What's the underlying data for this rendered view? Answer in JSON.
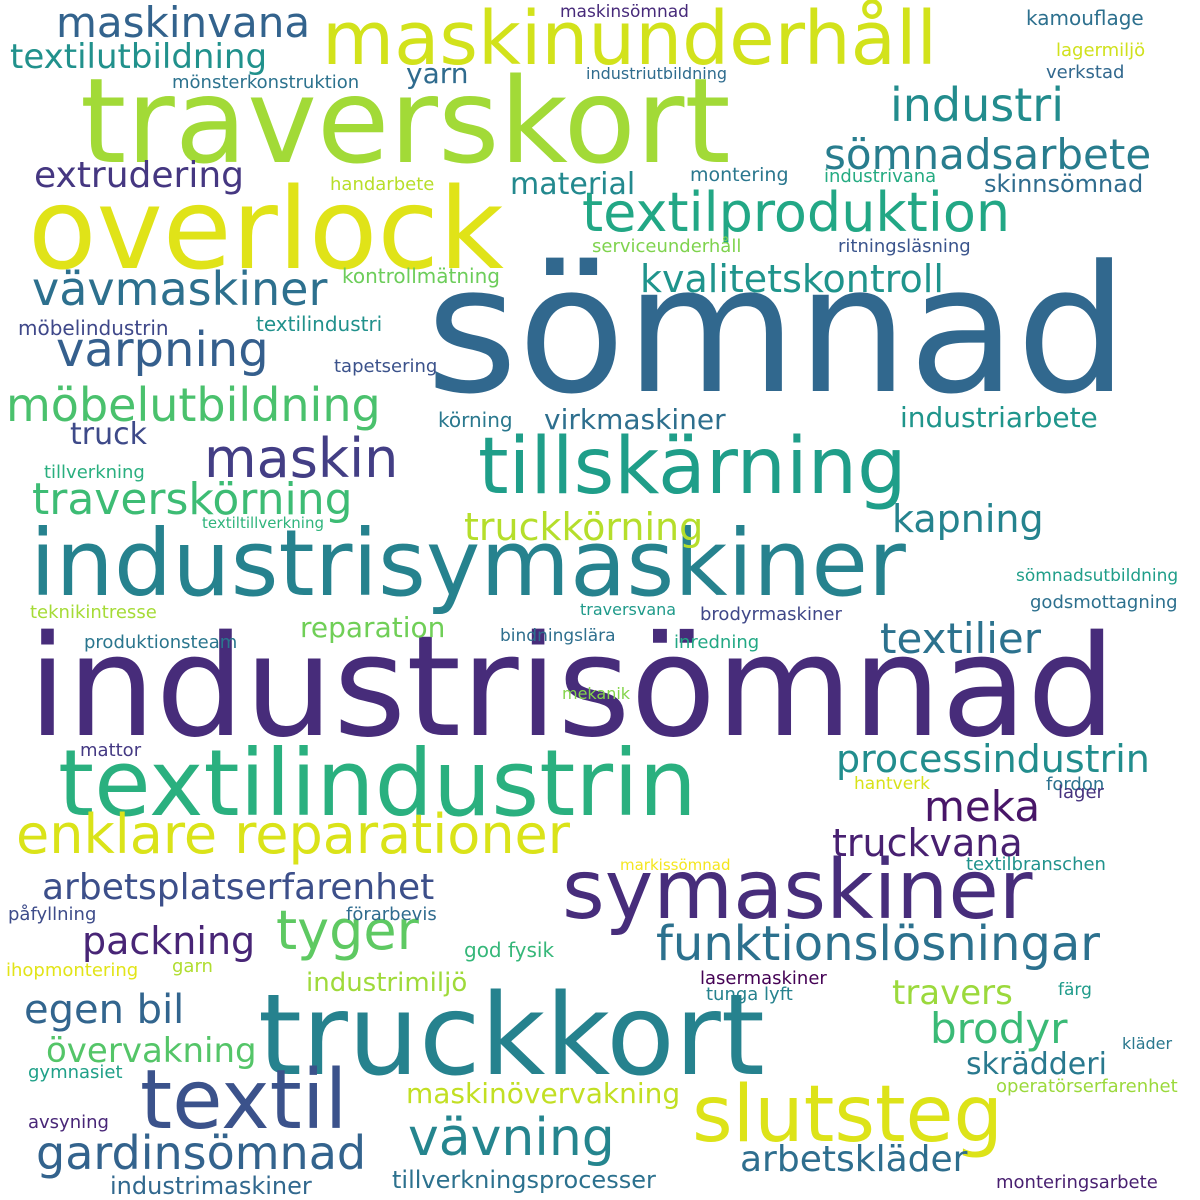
{
  "words": [
    {
      "text": "sömnad",
      "color": "#31688e"
    },
    {
      "text": "industrisömnad",
      "color": "#472c7a"
    },
    {
      "text": "traverskort",
      "color": "#a2da37"
    },
    {
      "text": "overlock",
      "color": "#e0e318"
    },
    {
      "text": "industrisymaskiner",
      "color": "#26828e"
    },
    {
      "text": "truckkort",
      "color": "#26828e"
    },
    {
      "text": "textilindustrin",
      "color": "#2ab07f"
    },
    {
      "text": "maskinunderhåll",
      "color": "#d2e21b"
    },
    {
      "text": "tillskärning",
      "color": "#1f9e89"
    },
    {
      "text": "symaskiner",
      "color": "#472d7b"
    },
    {
      "text": "textil",
      "color": "#3b528b"
    },
    {
      "text": "slutsteg",
      "color": "#dde318"
    },
    {
      "text": "enklare reparationer",
      "color": "#dae319"
    },
    {
      "text": "textilproduktion",
      "color": "#22a785"
    },
    {
      "text": "funktionslösningar",
      "color": "#2c718e"
    },
    {
      "text": "maskin",
      "color": "#433e85"
    },
    {
      "text": "tyger",
      "color": "#5ec962"
    },
    {
      "text": "vävning",
      "color": "#25858e"
    },
    {
      "text": "gardinsömnad",
      "color": "#33638d"
    },
    {
      "text": "möbelutbildning",
      "color": "#4ac16d"
    },
    {
      "text": "traverskörning",
      "color": "#3dbc74"
    },
    {
      "text": "varpning",
      "color": "#355f8d"
    },
    {
      "text": "vävmaskiner",
      "color": "#2d708e"
    },
    {
      "text": "industri",
      "color": "#228c8d"
    },
    {
      "text": "sömnadsarbete",
      "color": "#287d8e"
    },
    {
      "text": "textilier",
      "color": "#2c728e"
    },
    {
      "text": "meka",
      "color": "#481668"
    },
    {
      "text": "maskinvana",
      "color": "#33638d"
    },
    {
      "text": "processindustrin",
      "color": "#228d8d"
    },
    {
      "text": "brodyr",
      "color": "#3aba76"
    },
    {
      "text": "kvalitetskontroll",
      "color": "#1f948c"
    },
    {
      "text": "arbetsplatserfarenhet",
      "color": "#3c4f8a"
    },
    {
      "text": "truckvana",
      "color": "#482071"
    },
    {
      "text": "egen bil",
      "color": "#32658e"
    },
    {
      "text": "packning",
      "color": "#482576"
    },
    {
      "text": "arbetskläder",
      "color": "#2e6e8e"
    },
    {
      "text": "truckkörning",
      "color": "#b5de2b"
    },
    {
      "text": "textilutbildning",
      "color": "#21918c"
    },
    {
      "text": "extrudering",
      "color": "#453781"
    },
    {
      "text": "kapning",
      "color": "#25838e"
    },
    {
      "text": "travers",
      "color": "#9bd93c"
    },
    {
      "text": "övervakning",
      "color": "#54c568"
    },
    {
      "text": "skrädderi",
      "color": "#29798e"
    },
    {
      "text": "industrimiljö",
      "color": "#9fda3a"
    },
    {
      "text": "maskinövervakning",
      "color": "#c2df23"
    },
    {
      "text": "material",
      "color": "#23898e"
    },
    {
      "text": "truck",
      "color": "#3e4a89"
    },
    {
      "text": "virkmaskiner",
      "color": "#2e6f8e"
    },
    {
      "text": "industriarbete",
      "color": "#1f958b"
    },
    {
      "text": "reparation",
      "color": "#70cf57"
    },
    {
      "text": "yarn",
      "color": "#2f6b8e"
    },
    {
      "text": "skinnsömnad",
      "color": "#2f6c8e"
    },
    {
      "text": "industrimaskiner",
      "color": "#31688e"
    },
    {
      "text": "tillverkningsprocesser",
      "color": "#2c718e"
    },
    {
      "text": "kontrollmätning",
      "color": "#6ccd5a"
    },
    {
      "text": "möbelindustrin",
      "color": "#3f4889"
    },
    {
      "text": "textilindustri",
      "color": "#21918c"
    },
    {
      "text": "tapetsering",
      "color": "#3b528b"
    },
    {
      "text": "körning",
      "color": "#2a788e"
    },
    {
      "text": "tillverkning",
      "color": "#29af7f"
    },
    {
      "text": "textiltillverkning",
      "color": "#2fb47c"
    },
    {
      "text": "teknikintresse",
      "color": "#a5db36"
    },
    {
      "text": "produktionsteam",
      "color": "#2a768e"
    },
    {
      "text": "sömnadsutbildning",
      "color": "#1f9e89"
    },
    {
      "text": "godsmottagning",
      "color": "#2d708e"
    },
    {
      "text": "traversvana",
      "color": "#1f9a8a"
    },
    {
      "text": "brodyrmaskiner",
      "color": "#3f4788"
    },
    {
      "text": "bindningslära",
      "color": "#2e6f8e"
    },
    {
      "text": "inredning",
      "color": "#22a884"
    },
    {
      "text": "mekanik",
      "color": "#84d44b"
    },
    {
      "text": "mattor",
      "color": "#443983"
    },
    {
      "text": "hantverk",
      "color": "#d8e219"
    },
    {
      "text": "fordon",
      "color": "#2c718e"
    },
    {
      "text": "lager",
      "color": "#46327e"
    },
    {
      "text": "markissömnad",
      "color": "#f4e61e"
    },
    {
      "text": "textilbranschen",
      "color": "#20928c"
    },
    {
      "text": "påfyllning",
      "color": "#3e4c8a"
    },
    {
      "text": "förarbevis",
      "color": "#2f6b8e"
    },
    {
      "text": "god fysik",
      "color": "#35b779"
    },
    {
      "text": "ihopmontering",
      "color": "#e2e418"
    },
    {
      "text": "garn",
      "color": "#b0dd2f"
    },
    {
      "text": "lasermaskiner",
      "color": "#440154"
    },
    {
      "text": "tunga lyft",
      "color": "#26828e"
    },
    {
      "text": "färg",
      "color": "#1e9b8a"
    },
    {
      "text": "kläder",
      "color": "#2a788e"
    },
    {
      "text": "gymnasiet",
      "color": "#1fa088"
    },
    {
      "text": "operatörserfarenhet",
      "color": "#9bd93c"
    },
    {
      "text": "avsyning",
      "color": "#482677"
    },
    {
      "text": "monteringsarbete",
      "color": "#481f70"
    },
    {
      "text": "maskinsömnad",
      "color": "#472a7a"
    },
    {
      "text": "kamouflage",
      "color": "#2d708e"
    },
    {
      "text": "lagermiljö",
      "color": "#d0e11c"
    },
    {
      "text": "verkstad",
      "color": "#31688e"
    },
    {
      "text": "industriutbildning",
      "color": "#2f6c8e"
    },
    {
      "text": "mönsterkonstruktion",
      "color": "#2c728e"
    },
    {
      "text": "handarbete",
      "color": "#b8de29"
    },
    {
      "text": "montering",
      "color": "#2a778e"
    },
    {
      "text": "industrivana",
      "color": "#25ab82"
    },
    {
      "text": "serviceunderhåll",
      "color": "#7fd34e"
    },
    {
      "text": "ritningsläsning",
      "color": "#3a548c"
    }
  ]
}
